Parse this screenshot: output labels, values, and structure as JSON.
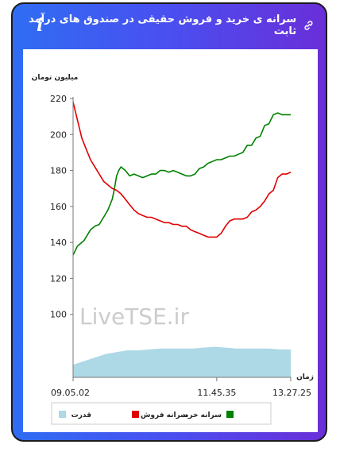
{
  "header": {
    "title": "سرانه ی خرید و فروش حقیقی در صندوق های درآمد ثابت",
    "title_icon": "link-icon",
    "info_icon": "info-icon"
  },
  "colors": {
    "buy": "#008000",
    "sell": "#e00000",
    "power": "#add8e6",
    "header_gradient": [
      "#2f6df3",
      "#6a2ed8"
    ]
  },
  "chart_data": {
    "type": "line",
    "ylabel": "میلیون تومان",
    "xlabel": "زمان",
    "watermark": "LiveTSE.ir",
    "y_ticks": [
      100,
      120,
      140,
      160,
      180,
      200,
      220
    ],
    "ylim": [
      65,
      220
    ],
    "x_tick_labels": [
      "09.05.02",
      "11.45.35",
      "13.27.25"
    ],
    "x_ticks": [
      0,
      0.66,
      1
    ],
    "grid": false,
    "legend_position": "bottom",
    "series": [
      {
        "name": "سرانه خرید",
        "color": "#008000",
        "points": [
          [
            0,
            133
          ],
          [
            0.02,
            138
          ],
          [
            0.05,
            141
          ],
          [
            0.08,
            147
          ],
          [
            0.1,
            149
          ],
          [
            0.12,
            150
          ],
          [
            0.14,
            154
          ],
          [
            0.16,
            158
          ],
          [
            0.18,
            164
          ],
          [
            0.19,
            170
          ],
          [
            0.2,
            177
          ],
          [
            0.21,
            180
          ],
          [
            0.22,
            182
          ],
          [
            0.24,
            180
          ],
          [
            0.26,
            177
          ],
          [
            0.28,
            178
          ],
          [
            0.3,
            177
          ],
          [
            0.32,
            176
          ],
          [
            0.34,
            177
          ],
          [
            0.36,
            178
          ],
          [
            0.38,
            178
          ],
          [
            0.4,
            180
          ],
          [
            0.42,
            180
          ],
          [
            0.44,
            179
          ],
          [
            0.46,
            180
          ],
          [
            0.48,
            179
          ],
          [
            0.5,
            178
          ],
          [
            0.52,
            177
          ],
          [
            0.54,
            177
          ],
          [
            0.56,
            178
          ],
          [
            0.58,
            181
          ],
          [
            0.6,
            182
          ],
          [
            0.62,
            184
          ],
          [
            0.64,
            185
          ],
          [
            0.66,
            186
          ],
          [
            0.68,
            186
          ],
          [
            0.7,
            187
          ],
          [
            0.72,
            188
          ],
          [
            0.74,
            188
          ],
          [
            0.76,
            189
          ],
          [
            0.78,
            190
          ],
          [
            0.8,
            194
          ],
          [
            0.82,
            194
          ],
          [
            0.84,
            198
          ],
          [
            0.86,
            199
          ],
          [
            0.88,
            205
          ],
          [
            0.9,
            206
          ],
          [
            0.92,
            211
          ],
          [
            0.94,
            212
          ],
          [
            0.96,
            211
          ],
          [
            0.98,
            211
          ],
          [
            1,
            211
          ]
        ]
      },
      {
        "name": "سرانه فروش",
        "color": "#e00000",
        "points": [
          [
            0,
            218
          ],
          [
            0.02,
            208
          ],
          [
            0.04,
            198
          ],
          [
            0.06,
            192
          ],
          [
            0.08,
            186
          ],
          [
            0.1,
            182
          ],
          [
            0.12,
            178
          ],
          [
            0.14,
            174
          ],
          [
            0.16,
            172
          ],
          [
            0.18,
            170
          ],
          [
            0.2,
            169
          ],
          [
            0.22,
            167
          ],
          [
            0.24,
            164
          ],
          [
            0.26,
            161
          ],
          [
            0.28,
            158
          ],
          [
            0.3,
            156
          ],
          [
            0.32,
            155
          ],
          [
            0.34,
            154
          ],
          [
            0.36,
            154
          ],
          [
            0.38,
            153
          ],
          [
            0.4,
            152
          ],
          [
            0.42,
            151
          ],
          [
            0.44,
            151
          ],
          [
            0.46,
            150
          ],
          [
            0.48,
            150
          ],
          [
            0.5,
            149
          ],
          [
            0.52,
            149
          ],
          [
            0.54,
            147
          ],
          [
            0.56,
            146
          ],
          [
            0.58,
            145
          ],
          [
            0.6,
            144
          ],
          [
            0.62,
            143
          ],
          [
            0.64,
            143
          ],
          [
            0.66,
            143
          ],
          [
            0.68,
            145
          ],
          [
            0.7,
            149
          ],
          [
            0.72,
            152
          ],
          [
            0.74,
            153
          ],
          [
            0.76,
            153
          ],
          [
            0.78,
            153
          ],
          [
            0.8,
            154
          ],
          [
            0.82,
            157
          ],
          [
            0.84,
            158
          ],
          [
            0.86,
            160
          ],
          [
            0.88,
            163
          ],
          [
            0.9,
            167
          ],
          [
            0.92,
            169
          ],
          [
            0.94,
            176
          ],
          [
            0.96,
            178
          ],
          [
            0.98,
            178
          ],
          [
            1,
            179
          ]
        ]
      },
      {
        "name": "قدرت",
        "color": "#add8e6",
        "type": "area",
        "points": [
          [
            0,
            72
          ],
          [
            0.05,
            74
          ],
          [
            0.1,
            76
          ],
          [
            0.15,
            78
          ],
          [
            0.2,
            79
          ],
          [
            0.25,
            80
          ],
          [
            0.3,
            80
          ],
          [
            0.35,
            80.5
          ],
          [
            0.4,
            81
          ],
          [
            0.45,
            81
          ],
          [
            0.5,
            81
          ],
          [
            0.55,
            81
          ],
          [
            0.6,
            81.5
          ],
          [
            0.65,
            82
          ],
          [
            0.7,
            81.5
          ],
          [
            0.75,
            81
          ],
          [
            0.8,
            81
          ],
          [
            0.85,
            81
          ],
          [
            0.9,
            81
          ],
          [
            0.95,
            80.5
          ],
          [
            1,
            80.5
          ]
        ]
      }
    ]
  },
  "legend": {
    "buy_label": "سرانه خرید",
    "sell_label": "سرانه فروش",
    "power_label": "قدرت"
  }
}
